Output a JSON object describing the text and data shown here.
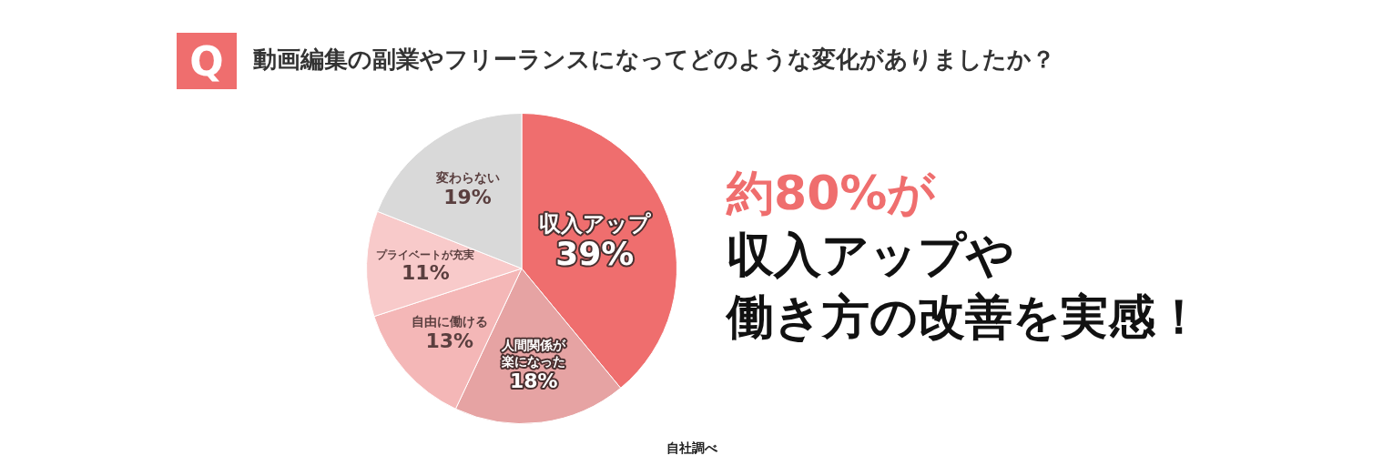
{
  "chart_data": {
    "type": "pie",
    "title": "動画編集の副業やフリーランスになってどのような変化がありましたか？",
    "categories": [
      "収入アップ",
      "人間関係が楽になった",
      "自由に働ける",
      "プライベートが充実",
      "変わらない"
    ],
    "values": [
      39,
      18,
      13,
      11,
      19
    ],
    "colors": [
      "#ef6e6e",
      "#e6a3a3",
      "#f4b7b7",
      "#f8caca",
      "#d9d9d9"
    ],
    "value_labels": [
      "39%",
      "18%",
      "13%",
      "11%",
      "19%"
    ],
    "legend": false,
    "annotations": [
      "Q",
      "約80%が",
      "収入アップや",
      "働き方の改善を実感！",
      "自社調べ"
    ]
  }
}
